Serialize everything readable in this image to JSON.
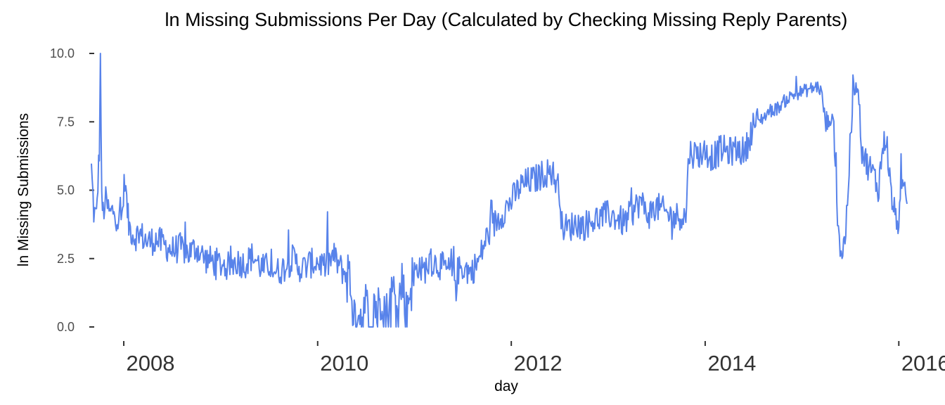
{
  "chart_data": {
    "type": "line",
    "title": "ln Missing Submissions Per Day (Calculated by Checking Missing Reply Parents)",
    "xlabel": "day",
    "ylabel": "ln Missing Submissions",
    "x_ticks": [
      "2008",
      "2010",
      "2012",
      "2014",
      "2016"
    ],
    "y_ticks": [
      "0.0",
      "2.5",
      "5.0",
      "7.5",
      "10.0"
    ],
    "ylim": [
      0,
      10
    ],
    "xlim": [
      "2007-09-01",
      "2016-02-01"
    ],
    "grid": false,
    "line_color": "#5883EA",
    "series": [
      {
        "x": [
          "2007-09-01",
          "2007-09-10",
          "2007-09-20",
          "2007-10-01",
          "2007-10-05",
          "2007-10-10",
          "2007-10-15",
          "2007-10-25",
          "2007-11-10",
          "2007-11-25",
          "2007-12-10",
          "2007-12-25",
          "2008-01-05",
          "2008-01-12",
          "2008-01-20",
          "2008-02-10",
          "2008-03-01",
          "2008-04-01",
          "2008-05-01",
          "2008-06-01",
          "2008-07-01",
          "2008-08-01",
          "2008-09-01",
          "2008-10-01",
          "2008-11-01",
          "2008-12-01",
          "2009-01-01",
          "2009-02-01",
          "2009-03-01",
          "2009-04-01",
          "2009-05-01",
          "2009-06-01",
          "2009-06-15",
          "2009-07-01",
          "2009-08-01",
          "2009-09-01",
          "2009-10-01",
          "2009-11-01",
          "2009-12-01",
          "2010-01-01",
          "2010-02-01",
          "2010-03-01",
          "2010-04-01",
          "2010-05-01",
          "2010-05-25",
          "2010-06-01",
          "2010-06-15",
          "2010-07-01",
          "2010-07-15",
          "2010-08-01",
          "2010-08-15",
          "2010-09-01",
          "2010-09-15",
          "2010-10-01",
          "2010-10-15",
          "2010-11-01",
          "2010-11-15",
          "2010-12-01",
          "2010-12-15",
          "2011-01-01",
          "2011-01-15",
          "2011-02-01",
          "2011-03-01",
          "2011-04-01",
          "2011-05-01",
          "2011-06-01",
          "2011-07-01",
          "2011-08-01",
          "2011-09-01",
          "2011-09-20",
          "2011-10-01",
          "2011-11-01",
          "2011-12-01",
          "2012-01-01",
          "2012-02-01",
          "2012-03-01",
          "2012-04-01",
          "2012-05-01",
          "2012-06-01",
          "2012-07-01",
          "2012-07-10",
          "2012-08-01",
          "2012-09-01",
          "2012-10-01",
          "2012-11-01",
          "2012-12-01",
          "2013-01-01",
          "2013-02-01",
          "2013-03-01",
          "2013-04-01",
          "2013-05-01",
          "2013-06-01",
          "2013-07-01",
          "2013-08-01",
          "2013-09-01",
          "2013-10-01",
          "2013-10-20",
          "2013-11-01",
          "2013-12-01",
          "2014-01-01",
          "2014-02-01",
          "2014-03-01",
          "2014-04-01",
          "2014-05-01",
          "2014-06-01",
          "2014-07-01",
          "2014-08-01",
          "2014-09-01",
          "2014-10-01",
          "2014-11-01",
          "2014-12-01",
          "2015-01-01",
          "2015-02-01",
          "2015-03-01",
          "2015-03-15",
          "2015-04-01",
          "2015-04-15",
          "2015-05-01",
          "2015-05-15",
          "2015-05-25",
          "2015-06-01",
          "2015-06-15",
          "2015-07-01",
          "2015-07-15",
          "2015-08-01",
          "2015-08-15",
          "2015-09-01",
          "2015-09-15",
          "2015-10-01",
          "2015-10-15",
          "2015-11-01",
          "2015-11-15",
          "2015-12-01",
          "2015-12-15",
          "2016-01-01",
          "2016-01-15",
          "2016-02-01"
        ],
        "y": [
          5.8,
          4.2,
          4.0,
          6.5,
          10.0,
          4.5,
          4.2,
          4.6,
          4.1,
          4.3,
          3.9,
          4.0,
          5.5,
          4.5,
          3.7,
          3.3,
          3.4,
          3.1,
          3.2,
          3.0,
          2.8,
          2.9,
          2.7,
          2.9,
          2.5,
          2.4,
          2.3,
          2.2,
          2.4,
          2.3,
          2.6,
          2.2,
          2.1,
          2.3,
          2.0,
          2.2,
          2.5,
          2.1,
          2.3,
          2.4,
          2.2,
          2.6,
          2.1,
          1.8,
          0.0,
          1.0,
          0.3,
          0.8,
          0.0,
          1.2,
          0.4,
          1.5,
          0.2,
          0.9,
          1.3,
          0.6,
          1.8,
          0.4,
          1.5,
          1.8,
          2.3,
          2.0,
          2.4,
          2.3,
          2.1,
          1.9,
          2.2,
          2.0,
          2.4,
          3.0,
          3.3,
          3.8,
          4.2,
          4.6,
          5.1,
          5.3,
          5.4,
          5.6,
          5.7,
          5.0,
          3.7,
          3.6,
          3.8,
          3.7,
          3.9,
          4.0,
          4.1,
          4.0,
          3.8,
          4.2,
          4.6,
          4.1,
          4.4,
          4.2,
          4.0,
          4.1,
          4.0,
          6.4,
          6.3,
          6.4,
          6.2,
          6.5,
          6.4,
          6.5,
          6.4,
          7.4,
          7.6,
          7.9,
          8.0,
          8.3,
          8.5,
          8.6,
          8.7,
          8.8,
          8.6,
          7.4,
          7.6,
          7.5,
          4.0,
          3.0,
          2.6,
          3.5,
          6.5,
          8.7,
          8.8,
          6.5,
          6.0,
          5.8,
          5.5,
          5.0,
          6.5,
          7.0,
          5.0,
          4.2,
          3.8,
          5.0,
          4.5
        ]
      }
    ]
  }
}
